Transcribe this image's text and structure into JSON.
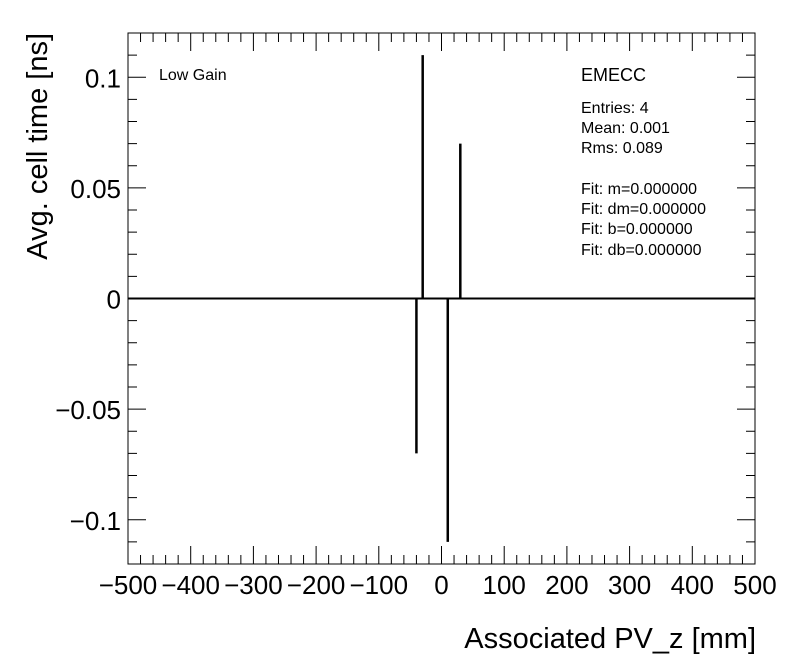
{
  "chart_data": {
    "type": "bar",
    "xlabel": "Associated PV_z [mm]",
    "ylabel": "Avg. cell time [ns]",
    "xlim": [
      -500,
      500
    ],
    "ylim": [
      -0.12,
      0.12
    ],
    "x_ticks": [
      {
        "value": -500,
        "label": "−500"
      },
      {
        "value": -400,
        "label": "−400"
      },
      {
        "value": -300,
        "label": "−300"
      },
      {
        "value": -200,
        "label": "−200"
      },
      {
        "value": -100,
        "label": "−100"
      },
      {
        "value": 0,
        "label": "0"
      },
      {
        "value": 100,
        "label": "100"
      },
      {
        "value": 200,
        "label": "200"
      },
      {
        "value": 300,
        "label": "300"
      },
      {
        "value": 400,
        "label": "400"
      },
      {
        "value": 500,
        "label": "500"
      }
    ],
    "y_ticks": [
      {
        "value": 0.1,
        "label": "0.1"
      },
      {
        "value": 0.05,
        "label": "0.05"
      },
      {
        "value": 0,
        "label": "0"
      },
      {
        "value": -0.05,
        "label": "−0.05"
      },
      {
        "value": -0.1,
        "label": "−0.1"
      }
    ],
    "points": [
      {
        "x": -40,
        "y": -0.07
      },
      {
        "x": -30,
        "y": 0.11
      },
      {
        "x": 10,
        "y": -0.11
      },
      {
        "x": 30,
        "y": 0.07
      }
    ],
    "grid": false,
    "annotations": {
      "gain": "Low Gain",
      "region": "EMECC",
      "stats": [
        "Entries: 4",
        "Mean: 0.001",
        "Rms: 0.089"
      ],
      "fit": [
        "Fit: m=0.000000",
        "Fit: dm=0.000000",
        "Fit: b=0.000000",
        "Fit: db=0.000000"
      ]
    }
  }
}
